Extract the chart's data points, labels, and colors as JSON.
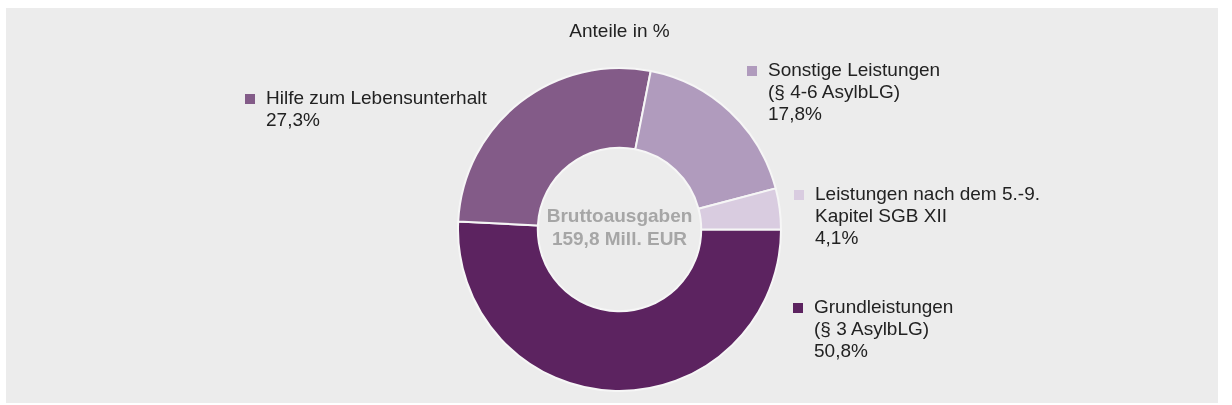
{
  "chart_data": {
    "type": "donut",
    "title": "Anteile in %",
    "categories": [
      "Grundleistungen\n(§ 3 AsylbLG)",
      "Hilfe zum Lebensunterhalt",
      "Sonstige Leistungen\n(§ 4-6 AsylbLG)",
      "Leistungen nach dem 5.-9.\nKapitel SGB XII"
    ],
    "values": [
      50.8,
      27.3,
      17.8,
      4.1
    ],
    "colors": [
      "#5c2360",
      "#835b88",
      "#b09bbd",
      "#d9cce0"
    ],
    "value_labels": [
      "50,8%",
      "27,3%",
      "17,8%",
      "4,1%"
    ],
    "legend": "right",
    "annotations": [
      "Bruttoausgaben\n159,8 Mill. EUR"
    ]
  }
}
